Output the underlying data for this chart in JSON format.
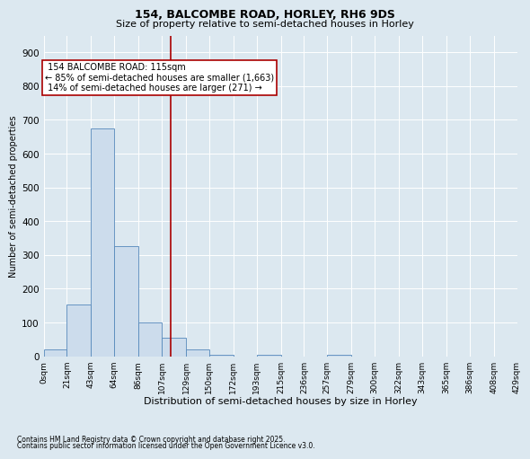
{
  "title1": "154, BALCOMBE ROAD, HORLEY, RH6 9DS",
  "title2": "Size of property relative to semi-detached houses in Horley",
  "xlabel": "Distribution of semi-detached houses by size in Horley",
  "ylabel": "Number of semi-detached properties",
  "footnote1": "Contains HM Land Registry data © Crown copyright and database right 2025.",
  "footnote2": "Contains public sector information licensed under the Open Government Licence v3.0.",
  "property_size": 115,
  "property_label": "154 BALCOMBE ROAD: 115sqm",
  "pct_smaller": "85% of semi-detached houses are smaller (1,663)",
  "pct_larger": "14% of semi-detached houses are larger (271)",
  "bar_color": "#ccdcec",
  "bar_edge_color": "#5588bb",
  "vline_color": "#aa0000",
  "background_color": "#dce8f0",
  "bins": [
    0,
    21,
    43,
    64,
    86,
    107,
    129,
    150,
    172,
    193,
    215,
    236,
    257,
    279,
    300,
    322,
    343,
    365,
    386,
    408,
    429
  ],
  "bin_labels": [
    "0sqm",
    "21sqm",
    "43sqm",
    "64sqm",
    "86sqm",
    "107sqm",
    "129sqm",
    "150sqm",
    "172sqm",
    "193sqm",
    "215sqm",
    "236sqm",
    "257sqm",
    "279sqm",
    "300sqm",
    "322sqm",
    "343sqm",
    "365sqm",
    "386sqm",
    "408sqm",
    "429sqm"
  ],
  "counts": [
    20,
    152,
    675,
    325,
    100,
    55,
    20,
    5,
    0,
    5,
    0,
    0,
    5,
    0,
    0,
    0,
    0,
    0,
    0,
    0
  ],
  "ylim": [
    0,
    950
  ],
  "yticks": [
    0,
    100,
    200,
    300,
    400,
    500,
    600,
    700,
    800,
    900
  ],
  "grid_color": "#ffffff",
  "annotation_box_color": "#ffffff",
  "annotation_box_edge": "#aa0000",
  "title1_fontsize": 9,
  "title2_fontsize": 8,
  "xlabel_fontsize": 8,
  "ylabel_fontsize": 7,
  "xtick_fontsize": 6.5,
  "ytick_fontsize": 7.5,
  "annot_fontsize": 7,
  "footnote_fontsize": 5.5
}
